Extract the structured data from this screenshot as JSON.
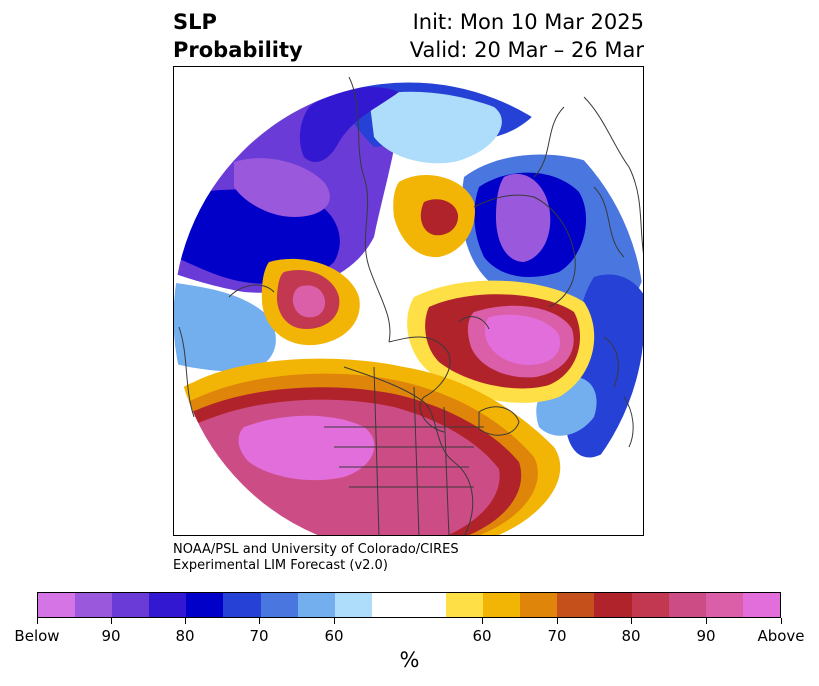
{
  "title": {
    "left_line1": "SLP",
    "left_line2": "Probability",
    "right_line1": "Init: Mon 10 Mar 2025",
    "right_line2": "Valid: 20 Mar – 26 Mar"
  },
  "credit": {
    "line1": "NOAA/PSL and University of Colorado/CIRES",
    "line2": "Experimental LIM Forecast (v2.0)"
  },
  "colorbar": {
    "unit": "%",
    "colors": [
      "#d575e5",
      "#9a58dd",
      "#6a3bd6",
      "#3218d0",
      "#0000c8",
      "#2541d6",
      "#4a76e0",
      "#73aeef",
      "#aedcfb",
      "#ffffff",
      "#ffffff",
      "#fedf45",
      "#f3b505",
      "#df860a",
      "#c6501c",
      "#b0232a",
      "#c33851",
      "#cc4c85",
      "#da5ea8",
      "#e26edb"
    ],
    "labels": [
      "Below",
      "90",
      "80",
      "70",
      "60",
      "60",
      "70",
      "80",
      "90",
      "Above"
    ]
  },
  "map": {
    "projection": "north-polar-stereographic",
    "regions": [
      {
        "name": "western-north-america",
        "category": "above"
      },
      {
        "name": "north-atlantic",
        "category": "above"
      },
      {
        "name": "gulf-of-alaska-pacific",
        "category": "above"
      },
      {
        "name": "eastern-asia",
        "category": "below"
      },
      {
        "name": "europe-scandinavia",
        "category": "below"
      },
      {
        "name": "arctic-siberia",
        "category": "below"
      }
    ]
  }
}
